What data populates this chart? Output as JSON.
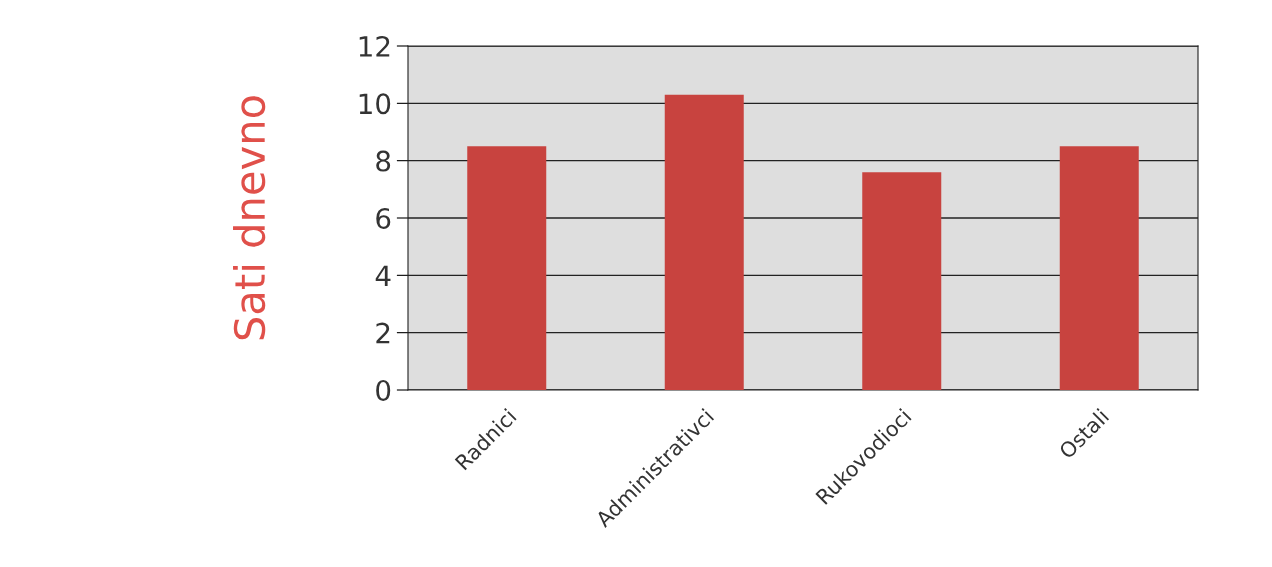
{
  "chart_data": {
    "type": "bar",
    "ylabel": "Sati dnevno",
    "categories": [
      "Radnici",
      "Administrativci",
      "Rukovodioci",
      "Ostali"
    ],
    "values": [
      8.5,
      10.3,
      7.6,
      8.5
    ],
    "color": "#c8433f",
    "ylim": [
      0,
      12
    ],
    "yticks": [
      0,
      2,
      4,
      6,
      8,
      10,
      12
    ],
    "grid": "y",
    "legend": false
  }
}
